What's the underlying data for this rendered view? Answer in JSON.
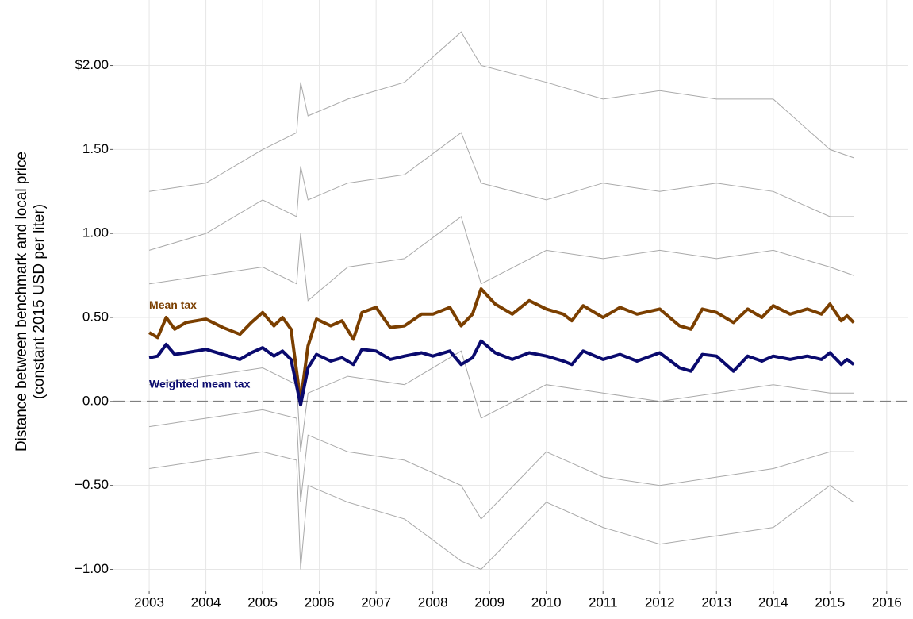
{
  "chart_data": {
    "type": "line",
    "y_label": [
      "Distance between benchmark and local price",
      "(constant 2015 USD per liter)"
    ],
    "x": [
      2003,
      2003.15,
      2003.3,
      2003.45,
      2003.65,
      2004,
      2004.3,
      2004.6,
      2004.8,
      2005,
      2005.2,
      2005.35,
      2005.5,
      2005.67,
      2005.8,
      2005.95,
      2006.2,
      2006.4,
      2006.6,
      2006.75,
      2007,
      2007.25,
      2007.5,
      2007.8,
      2008,
      2008.3,
      2008.5,
      2008.7,
      2008.85,
      2009.1,
      2009.4,
      2009.7,
      2010,
      2010.3,
      2010.45,
      2010.65,
      2011,
      2011.3,
      2011.6,
      2012,
      2012.35,
      2012.55,
      2012.75,
      2013,
      2013.3,
      2013.55,
      2013.8,
      2014,
      2014.3,
      2014.6,
      2014.85,
      2015,
      2015.2,
      2015.3,
      2015.42
    ],
    "series": [
      {
        "name": "Mean tax",
        "color": "#7b3f00",
        "values": [
          0.41,
          0.38,
          0.5,
          0.43,
          0.47,
          0.49,
          0.44,
          0.4,
          0.47,
          0.53,
          0.45,
          0.5,
          0.43,
          0.0,
          0.33,
          0.49,
          0.45,
          0.48,
          0.37,
          0.53,
          0.56,
          0.44,
          0.45,
          0.52,
          0.52,
          0.56,
          0.45,
          0.52,
          0.67,
          0.58,
          0.52,
          0.6,
          0.55,
          0.52,
          0.48,
          0.57,
          0.5,
          0.56,
          0.52,
          0.55,
          0.45,
          0.43,
          0.55,
          0.53,
          0.47,
          0.55,
          0.5,
          0.57,
          0.52,
          0.55,
          0.52,
          0.58,
          0.48,
          0.51,
          0.47
        ]
      },
      {
        "name": "Weighted mean tax",
        "color": "#0a0a6e",
        "values": [
          0.26,
          0.27,
          0.34,
          0.28,
          0.29,
          0.31,
          0.28,
          0.25,
          0.29,
          0.32,
          0.27,
          0.3,
          0.25,
          -0.02,
          0.2,
          0.28,
          0.24,
          0.26,
          0.22,
          0.31,
          0.3,
          0.25,
          0.27,
          0.29,
          0.27,
          0.3,
          0.22,
          0.26,
          0.36,
          0.29,
          0.25,
          0.29,
          0.27,
          0.24,
          0.22,
          0.3,
          0.25,
          0.28,
          0.24,
          0.29,
          0.2,
          0.18,
          0.28,
          0.27,
          0.18,
          0.27,
          0.24,
          0.27,
          0.25,
          0.27,
          0.25,
          0.29,
          0.22,
          0.25,
          0.22
        ]
      }
    ],
    "background_series": {
      "color": "#a9a9a9",
      "x": [
        2003,
        2004,
        2005,
        2005.6,
        2005.67,
        2005.8,
        2006.5,
        2007.5,
        2008.5,
        2008.85,
        2010,
        2011,
        2012,
        2013,
        2014,
        2015,
        2015.42
      ],
      "values": [
        [
          1.25,
          1.3,
          1.5,
          1.6,
          1.9,
          1.7,
          1.8,
          1.9,
          2.2,
          2.0,
          1.9,
          1.8,
          1.85,
          1.8,
          1.8,
          1.5,
          1.45
        ],
        [
          0.9,
          1.0,
          1.2,
          1.1,
          1.4,
          1.2,
          1.3,
          1.35,
          1.6,
          1.3,
          1.2,
          1.3,
          1.25,
          1.3,
          1.25,
          1.1,
          1.1
        ],
        [
          0.7,
          0.75,
          0.8,
          0.7,
          1.0,
          0.6,
          0.8,
          0.85,
          1.1,
          0.7,
          0.9,
          0.85,
          0.9,
          0.85,
          0.9,
          0.8,
          0.75
        ],
        [
          0.1,
          0.15,
          0.2,
          0.1,
          -0.3,
          0.05,
          0.15,
          0.1,
          0.3,
          -0.1,
          0.1,
          0.05,
          0.0,
          0.05,
          0.1,
          0.05,
          0.05
        ],
        [
          -0.15,
          -0.1,
          -0.05,
          -0.1,
          -0.6,
          -0.2,
          -0.3,
          -0.35,
          -0.5,
          -0.7,
          -0.3,
          -0.45,
          -0.5,
          -0.45,
          -0.4,
          -0.3,
          -0.3
        ],
        [
          -0.4,
          -0.35,
          -0.3,
          -0.35,
          -1.0,
          -0.5,
          -0.6,
          -0.7,
          -0.95,
          -1.0,
          -0.6,
          -0.75,
          -0.85,
          -0.8,
          -0.75,
          -0.5,
          -0.6
        ]
      ]
    },
    "hline": 0,
    "xlim": [
      2002.37,
      2016.38
    ],
    "xticks": [
      2003,
      2004,
      2005,
      2006,
      2007,
      2008,
      2009,
      2010,
      2011,
      2012,
      2013,
      2014,
      2015,
      2016
    ],
    "ylim": [
      -1.13,
      2.39
    ],
    "yticks": [
      {
        "value": -1,
        "label": "−1.00"
      },
      {
        "value": -0.5,
        "label": "−0.50"
      },
      {
        "value": 0,
        "label": "0.00"
      },
      {
        "value": 0.5,
        "label": "0.50"
      },
      {
        "value": 1,
        "label": "1.00"
      },
      {
        "value": 1.5,
        "label": "1.50"
      },
      {
        "value": 2,
        "label": "$2.00"
      }
    ],
    "grid": true
  }
}
